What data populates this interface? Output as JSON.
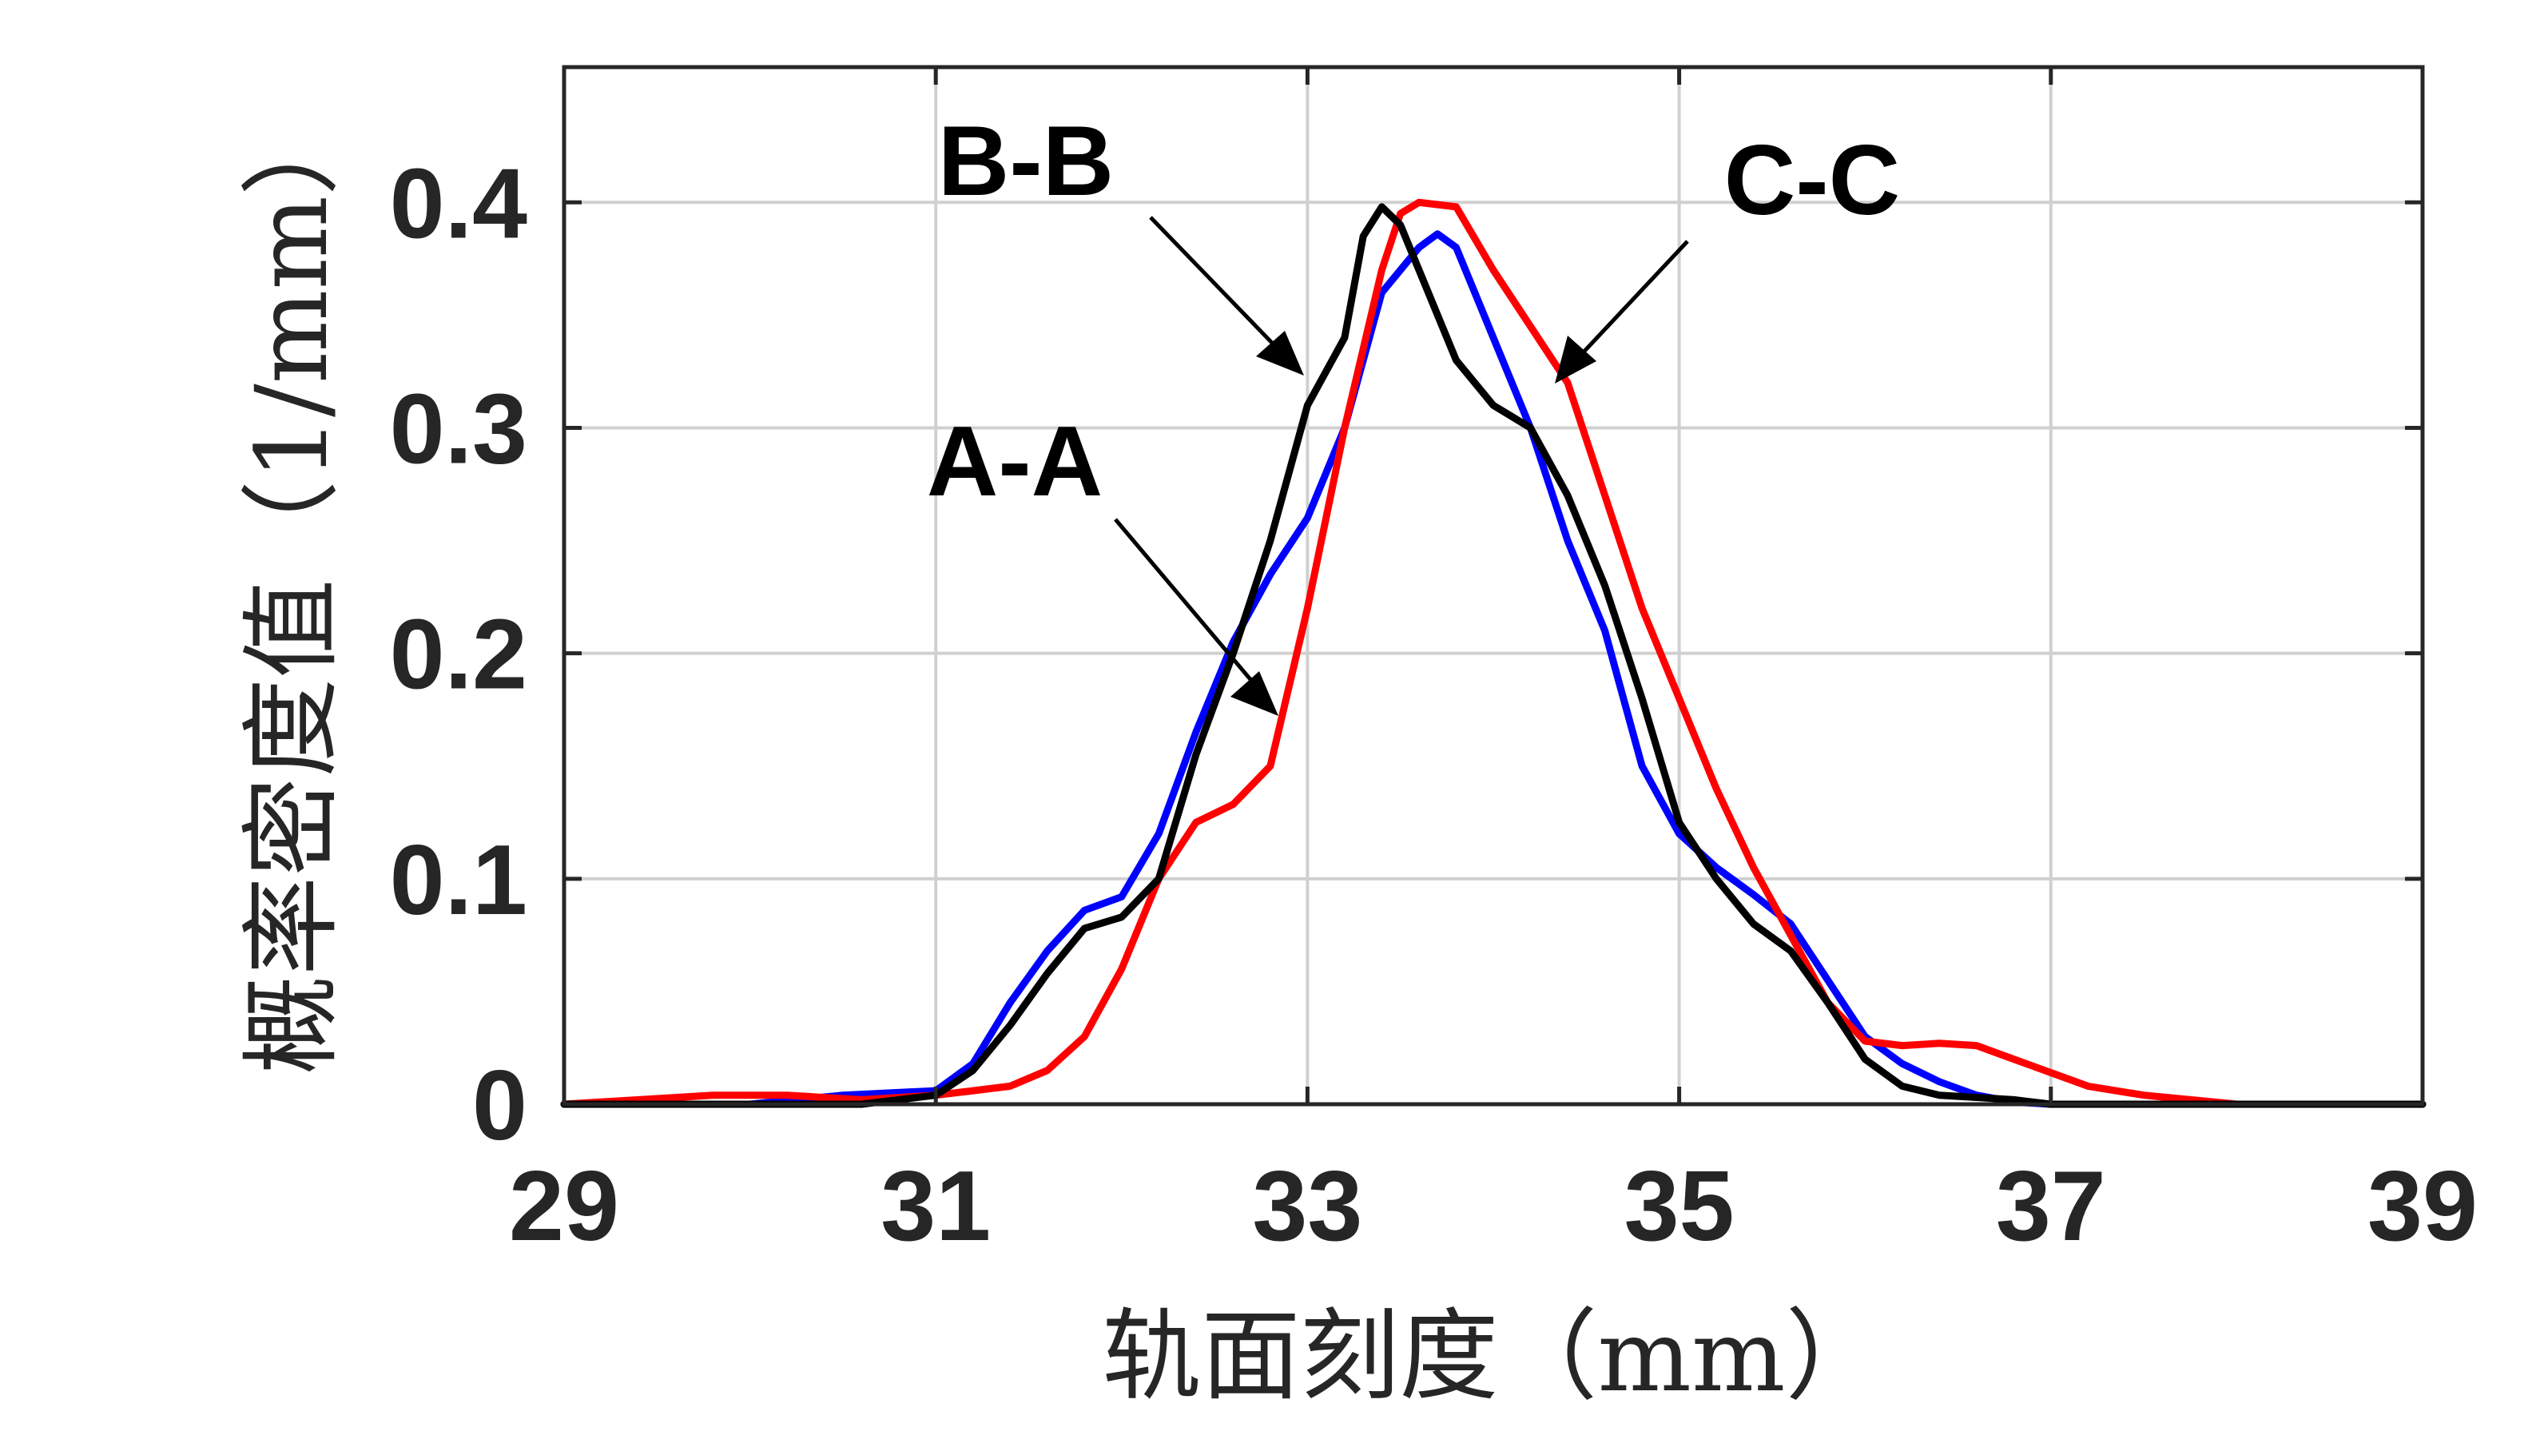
{
  "chart_data": {
    "type": "line",
    "xlabel": "轨面刻度（mm）",
    "ylabel": "概率密度值（1/mm）",
    "xlim": [
      29,
      39
    ],
    "ylim": [
      0,
      0.46
    ],
    "xticks": [
      "29",
      "31",
      "33",
      "35",
      "37",
      "39"
    ],
    "yticks": [
      "0",
      "0.1",
      "0.2",
      "0.3",
      "0.4"
    ],
    "grid": true,
    "legend": "none",
    "annotations": [
      "A-A",
      "B-B",
      "C-C"
    ],
    "series": [
      {
        "color": "#0000ff",
        "x": [
          29,
          30,
          30.5,
          31,
          31.2,
          31.4,
          31.6,
          31.8,
          32,
          32.2,
          32.4,
          32.6,
          32.8,
          33,
          33.2,
          33.4,
          33.6,
          33.7,
          33.8,
          34,
          34.2,
          34.4,
          34.6,
          34.8,
          35,
          35.2,
          35.4,
          35.6,
          35.8,
          36,
          36.2,
          36.4,
          36.6,
          36.8,
          37,
          38,
          39
        ],
        "y": [
          0,
          0,
          0.004,
          0.006,
          0.018,
          0.045,
          0.068,
          0.086,
          0.092,
          0.12,
          0.165,
          0.205,
          0.235,
          0.26,
          0.3,
          0.36,
          0.38,
          0.386,
          0.38,
          0.34,
          0.3,
          0.25,
          0.21,
          0.15,
          0.12,
          0.105,
          0.093,
          0.08,
          0.055,
          0.03,
          0.018,
          0.01,
          0.004,
          0.001,
          0,
          0,
          0
        ]
      },
      {
        "color": "#ff0000",
        "x": [
          29,
          29.8,
          30.2,
          30.6,
          31,
          31.2,
          31.4,
          31.6,
          31.8,
          32,
          32.2,
          32.4,
          32.6,
          32.8,
          33,
          33.2,
          33.4,
          33.5,
          33.6,
          33.8,
          34,
          34.2,
          34.4,
          34.6,
          34.8,
          35,
          35.2,
          35.4,
          35.6,
          35.8,
          36,
          36.2,
          36.4,
          36.6,
          36.8,
          37,
          37.2,
          37.5,
          38,
          39
        ],
        "y": [
          0,
          0.004,
          0.004,
          0.002,
          0.004,
          0.006,
          0.008,
          0.015,
          0.03,
          0.06,
          0.1,
          0.125,
          0.133,
          0.15,
          0.22,
          0.3,
          0.37,
          0.395,
          0.4,
          0.398,
          0.37,
          0.345,
          0.32,
          0.27,
          0.22,
          0.18,
          0.14,
          0.105,
          0.075,
          0.045,
          0.028,
          0.026,
          0.027,
          0.026,
          0.02,
          0.014,
          0.008,
          0.004,
          0,
          0
        ]
      },
      {
        "color": "#000000",
        "x": [
          29,
          30.6,
          31,
          31.2,
          31.4,
          31.6,
          31.8,
          32,
          32.2,
          32.4,
          32.6,
          32.8,
          33,
          33.2,
          33.3,
          33.4,
          33.5,
          33.6,
          33.8,
          34,
          34.1,
          34.2,
          34.4,
          34.6,
          34.8,
          35,
          35.2,
          35.4,
          35.6,
          35.8,
          36,
          36.2,
          36.4,
          36.6,
          36.8,
          37,
          39
        ],
        "y": [
          0,
          0,
          0.004,
          0.015,
          0.035,
          0.058,
          0.078,
          0.083,
          0.1,
          0.155,
          0.2,
          0.25,
          0.31,
          0.34,
          0.385,
          0.398,
          0.39,
          0.37,
          0.33,
          0.31,
          0.305,
          0.3,
          0.27,
          0.23,
          0.18,
          0.125,
          0.1,
          0.08,
          0.068,
          0.045,
          0.02,
          0.008,
          0.004,
          0.003,
          0.002,
          0,
          0
        ]
      }
    ]
  }
}
